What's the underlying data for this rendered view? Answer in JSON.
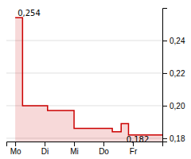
{
  "chart_data": {
    "type": "area",
    "x": [
      0.0,
      0.0,
      0.25,
      0.25,
      1.1,
      1.1,
      2.0,
      2.0,
      3.3,
      3.3,
      3.6,
      3.6,
      3.85,
      3.85,
      5.0
    ],
    "values": [
      0.254,
      0.254,
      0.254,
      0.2,
      0.2,
      0.197,
      0.197,
      0.186,
      0.186,
      0.184,
      0.184,
      0.189,
      0.189,
      0.182,
      0.182
    ],
    "color": "#cc0000",
    "xlim": [
      -0.3,
      5.0
    ],
    "xticks": [
      {
        "value": 0,
        "label": "Mo"
      },
      {
        "value": 1,
        "label": "Di"
      },
      {
        "value": 2,
        "label": "Mi"
      },
      {
        "value": 3,
        "label": "Do"
      },
      {
        "value": 4,
        "label": "Fr"
      }
    ],
    "ylim": [
      0.178,
      0.26
    ],
    "yticks": [
      {
        "value": 0.18,
        "label": "0,18"
      },
      {
        "value": 0.2,
        "label": "0,20"
      },
      {
        "value": 0.22,
        "label": "0,22"
      },
      {
        "value": 0.24,
        "label": "0,24"
      }
    ],
    "grid": true,
    "annotations": [
      {
        "text": "0,254",
        "x": 0.03,
        "y": 0.254
      },
      {
        "text": "0,182",
        "x": 3.72,
        "y": 0.182
      }
    ]
  }
}
